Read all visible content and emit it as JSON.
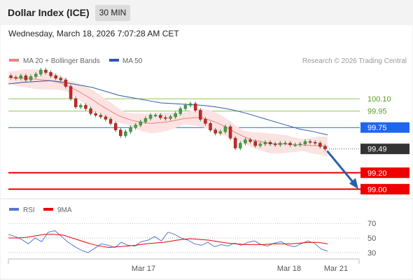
{
  "header": {
    "title": "Dollar Index (ICE)",
    "timeframe": "30 MIN"
  },
  "datetime": "Wednesday, March 18, 2026 7:07:28 AM CET",
  "legend": [
    {
      "label": "MA 20 + Bollinger Bands",
      "color": "#f08080"
    },
    {
      "label": "MA 50",
      "color": "#2a5ba8"
    }
  ],
  "credit": "Research © 2026 Trading Central",
  "colors": {
    "support": "#ee0000",
    "resistance": "#8cc850",
    "pivot": "#1f66ee",
    "current": "#333333",
    "arrow": "#2563a8"
  },
  "chart_data": [
    {
      "type": "line",
      "title": "",
      "x_labels": [
        "Mar 17",
        "Mar 18",
        "Mar 21"
      ],
      "ylim": [
        98.9,
        100.45
      ],
      "price_series": [
        100.36,
        100.35,
        100.38,
        100.33,
        100.37,
        100.4,
        100.45,
        100.42,
        100.38,
        100.35,
        100.33,
        100.25,
        100.1,
        100.0,
        100.02,
        99.98,
        99.92,
        99.9,
        99.88,
        99.85,
        99.8,
        99.72,
        99.65,
        99.7,
        99.75,
        99.78,
        99.82,
        99.86,
        99.9,
        99.9,
        99.87,
        99.86,
        99.88,
        99.92,
        99.98,
        100.02,
        100.04,
        99.96,
        99.85,
        99.8,
        99.72,
        99.68,
        99.7,
        99.76,
        99.62,
        99.5,
        99.56,
        99.6,
        99.58,
        99.53,
        99.55,
        99.57,
        99.55,
        99.54,
        99.56,
        99.56,
        99.54,
        99.54,
        99.55,
        99.58,
        99.57,
        99.56,
        99.52,
        99.49
      ],
      "ma20": [
        100.36,
        100.35,
        100.35,
        100.34,
        100.33,
        100.32,
        100.3,
        100.26,
        100.21,
        100.15,
        100.09,
        100.02,
        99.96,
        99.9,
        99.86,
        99.83,
        99.81,
        99.8,
        99.81,
        99.82,
        99.84,
        99.86,
        99.87,
        99.87,
        99.84,
        99.8,
        99.75,
        99.69,
        99.64,
        99.6,
        99.58,
        99.56,
        99.55,
        99.55,
        99.54,
        99.54,
        99.53,
        99.53,
        99.52
      ],
      "ma50": [
        100.28,
        100.3,
        100.31,
        100.32,
        100.3,
        100.27,
        100.24,
        100.19,
        100.14,
        100.11,
        100.08,
        100.05,
        100.04,
        100.03,
        100.02,
        100.0,
        99.97,
        99.93,
        99.88,
        99.83,
        99.78,
        99.73,
        99.7,
        99.66
      ],
      "levels": [
        {
          "label": "100.10",
          "value": 100.1,
          "kind": "resistance"
        },
        {
          "label": "99.95",
          "value": 99.95,
          "kind": "resistance"
        },
        {
          "label": "99.75",
          "value": 99.75,
          "kind": "pivot"
        },
        {
          "label": "99.49",
          "value": 99.49,
          "kind": "current"
        },
        {
          "label": "99.20",
          "value": 99.2,
          "kind": "support"
        },
        {
          "label": "99.00",
          "value": 99.0,
          "kind": "support"
        }
      ]
    },
    {
      "type": "line",
      "title": "",
      "legend": [
        {
          "label": "RSI",
          "color": "#5577cc"
        },
        {
          "label": "9MA",
          "color": "#ee0000"
        }
      ],
      "ylim": [
        25,
        75
      ],
      "yticks": [
        "70",
        "50",
        "30"
      ],
      "rsi": [
        55,
        52,
        48,
        42,
        50,
        45,
        58,
        60,
        52,
        44,
        38,
        33,
        30,
        36,
        42,
        40,
        37,
        44,
        40,
        39,
        45,
        47,
        52,
        46,
        58,
        55,
        50,
        47,
        42,
        40,
        44,
        38,
        41,
        39,
        43,
        40,
        44,
        46,
        41,
        39,
        43,
        45,
        40,
        38,
        42,
        46,
        43,
        35,
        32
      ],
      "ma9": [
        50,
        50,
        51,
        53,
        55,
        55,
        54,
        50,
        46,
        42,
        39,
        37,
        38,
        39,
        40,
        42,
        43,
        44,
        46,
        48,
        49,
        48,
        47,
        45,
        43,
        42,
        41,
        41,
        41,
        42,
        42,
        42,
        43,
        44,
        44,
        42
      ]
    }
  ]
}
